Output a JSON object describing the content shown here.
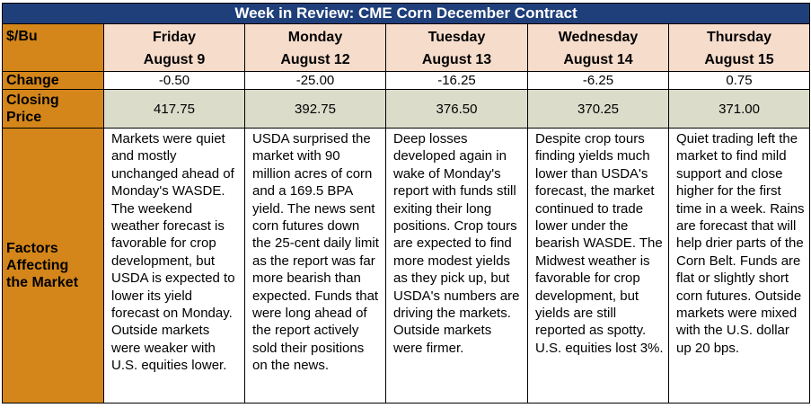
{
  "title": "Week in Review: CME Corn December Contract",
  "unit_label": "$/Bu",
  "days": [
    {
      "weekday": "Friday",
      "date": "August 9"
    },
    {
      "weekday": "Monday",
      "date": "August 12"
    },
    {
      "weekday": "Tuesday",
      "date": "August 13"
    },
    {
      "weekday": "Wednesday",
      "date": "August 14"
    },
    {
      "weekday": "Thursday",
      "date": "August 15"
    }
  ],
  "change": {
    "label": "Change",
    "values": [
      "-0.50",
      "-25.00",
      "-16.25",
      "-6.25",
      "0.75"
    ]
  },
  "closing": {
    "label_line1": "Closing",
    "label_line2": "Price",
    "values": [
      "417.75",
      "392.75",
      "376.50",
      "370.25",
      "371.00"
    ]
  },
  "factors": {
    "label_line1": "Factors",
    "label_line2": "Affecting",
    "label_line3": "the Market",
    "notes": [
      "Markets were quiet and mostly unchanged ahead of Monday's WASDE. The weekend weather forecast is favorable for crop development, but USDA is expected to lower its yield forecast on Monday. Outside markets were weaker with U.S. equities lower.",
      "USDA surprised the market with 90 million acres of corn and a 169.5 BPA yield. The news sent corn futures down the 25-cent daily limit as the report was far more bearish than expected. Funds that were long ahead of the report actively sold their positions on the news.",
      "Deep losses developed again in wake of Monday's report with funds still exiting their long positions. Crop tours are expected to find more modest yields as they pick up, but USDA's numbers are driving the markets. Outside markets were firmer.",
      "Despite crop tours finding yields much lower than USDA's forecast, the market continued to trade lower under the bearish WASDE. The Midwest weather is favorable for crop development, but yields are still reported as spotty. U.S. equities lost 3%.",
      "Quiet trading left the market to find mild support and close higher for the first time in a week. Rains are forecast that will help drier parts of the Corn Belt. Funds are flat or slightly short corn futures. Outside markets were mixed with the U.S. dollar up 20 bps."
    ]
  },
  "colors": {
    "title_bg": "#1f3f7a",
    "rowhead_bg": "#d4861a",
    "dayhead_bg": "#f6dccb",
    "closing_bg": "#dcdccb"
  }
}
